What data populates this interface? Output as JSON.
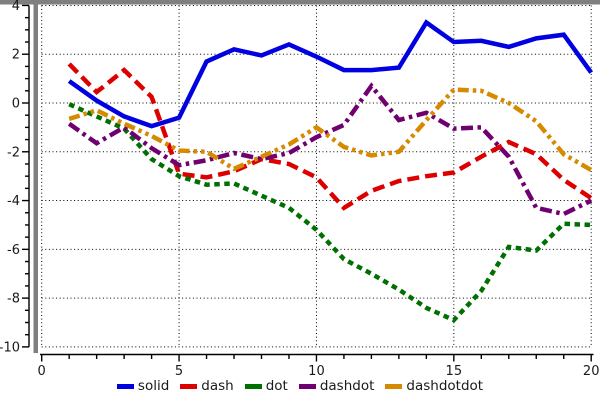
{
  "figure": {
    "background": "#ffffff",
    "frame_color": "#7f7f7f",
    "grid_color": "#000000",
    "axis_color": "#000000",
    "label_color": "#1a1a1a"
  },
  "axes": {
    "x": {
      "min": 0,
      "max": 20,
      "minor_step": 1,
      "major_ticks": [
        0,
        5,
        10,
        15,
        20
      ],
      "labels": [
        "0",
        "5",
        "10",
        "15",
        "20"
      ]
    },
    "y": {
      "min": -10,
      "max": 4,
      "minor_step": 0.5,
      "major_ticks": [
        4,
        2,
        0,
        -2,
        -4,
        -6,
        -8,
        -10
      ],
      "labels": [
        "4",
        "2",
        "0",
        "-2",
        "-4",
        "-6",
        "-8",
        "-10"
      ]
    }
  },
  "chart_data": {
    "type": "line",
    "title": "",
    "xlabel": "",
    "ylabel": "",
    "xlim": [
      0,
      20
    ],
    "ylim": [
      -10,
      4
    ],
    "grid": true,
    "grid_style": "dotted",
    "legend_position": "bottom",
    "x": [
      1,
      2,
      3,
      4,
      5,
      6,
      7,
      8,
      9,
      10,
      11,
      12,
      13,
      14,
      15,
      16,
      17,
      18,
      19,
      20
    ],
    "series": [
      {
        "name": "solid",
        "color": "#0000e0",
        "dash": "solid",
        "values": [
          0.9,
          0.1,
          -0.55,
          -0.95,
          -0.6,
          1.7,
          2.2,
          1.95,
          2.4,
          1.9,
          1.35,
          1.35,
          1.45,
          3.3,
          2.5,
          2.55,
          2.3,
          2.65,
          2.8,
          1.25
        ]
      },
      {
        "name": "dash",
        "color": "#dd0000",
        "dash": "dash",
        "values": [
          1.6,
          0.45,
          1.35,
          0.25,
          -2.9,
          -3.05,
          -2.8,
          -2.3,
          -2.5,
          -3.05,
          -4.3,
          -3.6,
          -3.2,
          -3.0,
          -2.85,
          -2.2,
          -1.6,
          -2.1,
          -3.15,
          -3.9
        ]
      },
      {
        "name": "dot",
        "color": "#007000",
        "dash": "dot",
        "values": [
          -0.05,
          -0.55,
          -1.05,
          -2.3,
          -3.0,
          -3.35,
          -3.3,
          -3.8,
          -4.3,
          -5.2,
          -6.4,
          -7.0,
          -7.65,
          -8.4,
          -8.9,
          -7.7,
          -5.9,
          -6.05,
          -4.95,
          -5.0
        ]
      },
      {
        "name": "dashdot",
        "color": "#700070",
        "dash": "dashdot",
        "values": [
          -0.85,
          -1.65,
          -1.0,
          -1.85,
          -2.55,
          -2.35,
          -2.05,
          -2.3,
          -2.05,
          -1.4,
          -0.9,
          0.7,
          -0.7,
          -0.4,
          -1.05,
          -1.0,
          -2.2,
          -4.3,
          -4.55,
          -4.0
        ]
      },
      {
        "name": "dashdotdot",
        "color": "#d68a00",
        "dash": "dashdotdot",
        "values": [
          -0.65,
          -0.3,
          -0.85,
          -1.35,
          -1.95,
          -2.0,
          -2.7,
          -2.2,
          -1.7,
          -1.0,
          -1.8,
          -2.15,
          -2.0,
          -0.7,
          0.55,
          0.5,
          0.0,
          -0.75,
          -2.1,
          -2.75
        ]
      }
    ]
  },
  "legend": {
    "items": [
      "solid",
      "dash",
      "dot",
      "dashdot",
      "dashdotdot"
    ]
  }
}
